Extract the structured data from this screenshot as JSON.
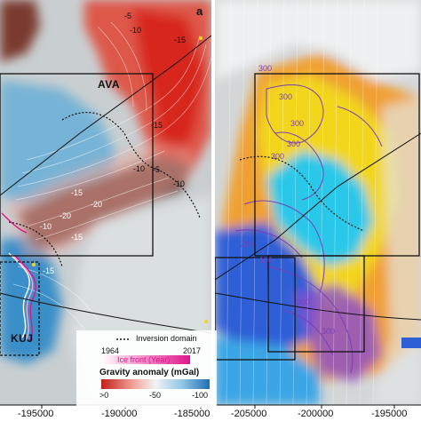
{
  "panel_left": {
    "panel_letter": "a",
    "box_labels": [
      "AVA",
      "KUJ"
    ],
    "contour_labels": [
      "-5",
      "-10",
      "-15",
      "-15",
      "-10",
      "-5",
      "-10",
      "-15",
      "-20",
      "-15",
      "-10",
      "-20",
      "-15"
    ],
    "legend": {
      "inversion_label": "Inversion domain",
      "year_start": "1964",
      "year_end": "2017",
      "ice_front_label": "Ice front (Year)",
      "gravity_title": "Gravity anomaly (mGal)",
      "gravity_ticks": [
        ">0",
        "-50",
        "-100"
      ]
    },
    "x_ticks": [
      "-195000",
      "-190000",
      "-185000"
    ]
  },
  "panel_right": {
    "contour_labels": [
      "300",
      "300",
      "300",
      "300",
      "300",
      "200",
      "100",
      "300",
      "300"
    ],
    "x_ticks": [
      "-205000",
      "-200000",
      "-195000"
    ]
  },
  "colors": {
    "gravity_high": "#d7261e",
    "gravity_low": "#3a8fc8",
    "gravity_negative_dark": "#6b3a32",
    "ice_front_old": "#ffffff",
    "ice_front_new": "#e0168c",
    "bed_yellow": "#f2d61c",
    "bed_orange": "#f0a030",
    "bed_cyan": "#2ac8e8",
    "bed_blue": "#2f5fd6",
    "contour_purple": "#7a3fb8"
  },
  "icons": [
    "north-arrow-icon"
  ]
}
